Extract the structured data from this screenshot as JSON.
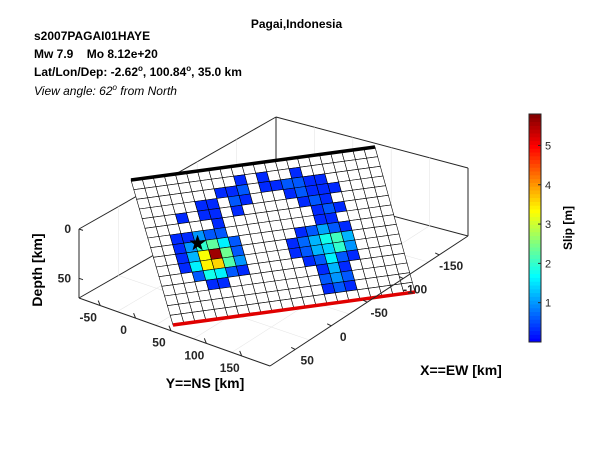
{
  "title": "Pagai,Indonesia",
  "header": {
    "event_id": "s2007PAGAI01HAYE",
    "mw_label": "Mw 7.9",
    "mo_label": "Mo 8.12e+20",
    "location_prefix": "Lat/Lon/Dep: -2.62",
    "location_mid": ", 100.84",
    "location_suffix": ", 35.0 km",
    "deg_symbol": "o",
    "view_prefix": "View angle:  62",
    "view_suffix": " from North"
  },
  "colorbar": {
    "label": "Slip [m]",
    "ticks": [
      "1",
      "2",
      "3",
      "4",
      "5"
    ],
    "tick_values": [
      1,
      2,
      3,
      4,
      5
    ],
    "range": [
      0,
      5.8
    ]
  },
  "chart_data": {
    "type": "heatmap",
    "title": "Pagai,Indonesia",
    "xlabel": "X==EW [km]",
    "ylabel": "Y==NS [km]",
    "zlabel": "Depth [km]",
    "x_ticks": [
      "-150",
      "-100",
      "-50",
      "0",
      "50"
    ],
    "x_tick_values": [
      -150,
      -100,
      -50,
      0,
      50
    ],
    "y_ticks": [
      "-50",
      "0",
      "50",
      "100",
      "150"
    ],
    "y_tick_values": [
      -50,
      0,
      50,
      100,
      150
    ],
    "z_ticks": [
      "0",
      "50"
    ],
    "z_tick_values": [
      0,
      50
    ],
    "grid": true,
    "fault_top_edge_color": "#000000",
    "fault_bottom_edge_color": "#e00000",
    "colormap": "jet",
    "rows": 15,
    "cols": 22,
    "slip_m": [
      [
        0,
        0,
        0,
        0,
        0,
        0,
        0,
        0,
        0,
        0,
        0,
        0,
        0,
        0,
        0,
        0,
        0,
        0,
        0,
        0,
        0,
        0
      ],
      [
        0,
        0,
        0,
        0,
        0,
        0,
        0,
        0,
        0,
        0.3,
        0,
        0.3,
        0,
        0,
        0.3,
        0,
        0,
        0,
        0,
        0,
        0,
        0
      ],
      [
        0,
        0,
        0,
        0,
        0,
        0,
        0,
        0.3,
        0.3,
        0.6,
        0,
        0.3,
        0.3,
        0.6,
        0.6,
        0.3,
        0.3,
        0,
        0,
        0,
        0,
        0
      ],
      [
        0,
        0,
        0,
        0,
        0,
        0.3,
        0.3,
        0,
        0.6,
        0.3,
        0,
        0,
        0,
        0.3,
        0.6,
        0.3,
        0.3,
        0.3,
        0,
        0,
        0,
        0
      ],
      [
        0,
        0,
        0,
        0.3,
        0,
        0.3,
        0.3,
        0,
        0.3,
        0,
        0,
        0,
        0,
        0,
        0.3,
        0.6,
        0.3,
        0,
        0,
        0,
        0,
        0
      ],
      [
        0,
        0,
        0,
        0,
        0,
        0,
        0.3,
        0,
        0,
        0,
        0,
        0,
        0,
        0,
        0,
        0.3,
        0.6,
        0.3,
        0,
        0,
        0,
        0
      ],
      [
        0,
        0,
        0.3,
        0.3,
        1.0,
        0.6,
        0.6,
        0,
        0,
        0,
        0,
        0,
        0,
        0,
        0,
        0.3,
        0.3,
        0,
        0,
        0,
        0,
        0
      ],
      [
        0,
        0,
        0.3,
        1.0,
        2.0,
        2.3,
        1.6,
        0.6,
        0,
        0,
        0,
        0,
        0,
        0.3,
        0.6,
        1.1,
        0.6,
        0.3,
        0,
        0,
        0,
        0
      ],
      [
        0,
        0,
        0.3,
        1.2,
        3.3,
        5.6,
        2.4,
        0.6,
        0,
        0,
        0,
        0,
        0.3,
        0.7,
        1.2,
        1.8,
        2.1,
        1.2,
        0,
        0,
        0,
        0
      ],
      [
        0,
        0,
        0.3,
        1.6,
        3.4,
        3.6,
        2.2,
        1.0,
        0,
        0,
        0,
        0,
        0.3,
        0.6,
        1.2,
        1.4,
        2.0,
        1.0,
        0,
        0,
        0,
        0
      ],
      [
        0,
        0,
        0,
        0.6,
        1.8,
        1.6,
        0.6,
        0.3,
        0,
        0,
        0,
        0,
        0,
        0.3,
        0.6,
        1.6,
        0.6,
        0.3,
        0,
        0,
        0,
        0
      ],
      [
        0,
        0,
        0,
        0,
        0.3,
        0.3,
        0,
        0,
        0,
        0,
        0,
        0,
        0,
        0,
        0.3,
        1.2,
        0.3,
        0,
        0,
        0,
        0,
        0
      ],
      [
        0,
        0,
        0,
        0,
        0,
        0,
        0,
        0,
        0,
        0,
        0,
        0,
        0,
        0,
        0.6,
        1.0,
        0.6,
        0,
        0,
        0,
        0,
        0
      ],
      [
        0,
        0,
        0,
        0,
        0,
        0,
        0,
        0,
        0,
        0,
        0,
        0,
        0,
        0,
        0.3,
        0.6,
        0.3,
        0,
        0,
        0,
        0,
        0
      ],
      [
        0,
        0,
        0,
        0,
        0,
        0,
        0,
        0,
        0,
        0,
        0,
        0,
        0,
        0,
        0,
        0,
        0,
        0,
        0,
        0,
        0,
        0
      ]
    ],
    "hypocenter": {
      "row": 7.2,
      "col": 4.2
    }
  }
}
